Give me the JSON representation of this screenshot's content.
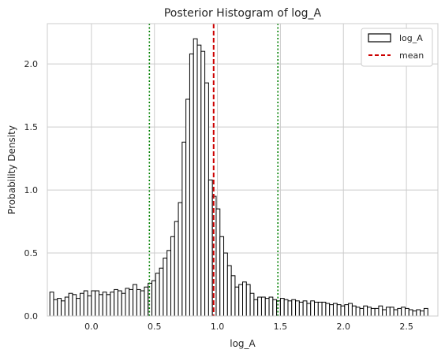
{
  "chart_data": {
    "type": "histogram",
    "title": "Posterior Histogram of log_A",
    "xlabel": "log_A",
    "ylabel": "Probability Density",
    "xlim": [
      -0.35,
      2.75
    ],
    "ylim": [
      0,
      2.32
    ],
    "xticks": [
      0.0,
      0.5,
      1.0,
      1.5,
      2.0,
      2.5
    ],
    "xtick_labels": [
      "0.0",
      "0.5",
      "1.0",
      "1.5",
      "2.0",
      "2.5"
    ],
    "yticks": [
      0.0,
      0.5,
      1.0,
      1.5,
      2.0
    ],
    "ytick_labels": [
      "0.0",
      "0.5",
      "1.0",
      "1.5",
      "2.0"
    ],
    "grid": true,
    "legend_position": "top-right",
    "bin_start": -0.33,
    "bin_width": 0.03,
    "densities": [
      0.19,
      0.13,
      0.14,
      0.12,
      0.15,
      0.18,
      0.17,
      0.14,
      0.18,
      0.2,
      0.16,
      0.2,
      0.2,
      0.17,
      0.19,
      0.17,
      0.19,
      0.21,
      0.2,
      0.18,
      0.22,
      0.21,
      0.25,
      0.21,
      0.2,
      0.23,
      0.26,
      0.28,
      0.34,
      0.38,
      0.46,
      0.52,
      0.63,
      0.75,
      0.9,
      1.38,
      1.72,
      2.08,
      2.2,
      2.15,
      2.1,
      1.85,
      1.08,
      0.95,
      0.85,
      0.63,
      0.5,
      0.4,
      0.32,
      0.23,
      0.25,
      0.27,
      0.25,
      0.18,
      0.13,
      0.15,
      0.15,
      0.14,
      0.15,
      0.13,
      0.12,
      0.14,
      0.13,
      0.12,
      0.13,
      0.12,
      0.11,
      0.12,
      0.1,
      0.12,
      0.11,
      0.11,
      0.11,
      0.1,
      0.09,
      0.1,
      0.09,
      0.08,
      0.09,
      0.1,
      0.08,
      0.07,
      0.06,
      0.08,
      0.07,
      0.06,
      0.06,
      0.08,
      0.05,
      0.07,
      0.07,
      0.05,
      0.06,
      0.07,
      0.06,
      0.05,
      0.04,
      0.05,
      0.04,
      0.06
    ],
    "mean": 0.97,
    "interval_lines": [
      0.46,
      1.48
    ],
    "series": [
      {
        "name": "log_A",
        "style": "step-outline",
        "color": "#000000"
      },
      {
        "name": "mean",
        "style": "dashed",
        "color": "#cc0000"
      }
    ],
    "interval_color": "#008000",
    "grid_color": "#cccccc"
  }
}
